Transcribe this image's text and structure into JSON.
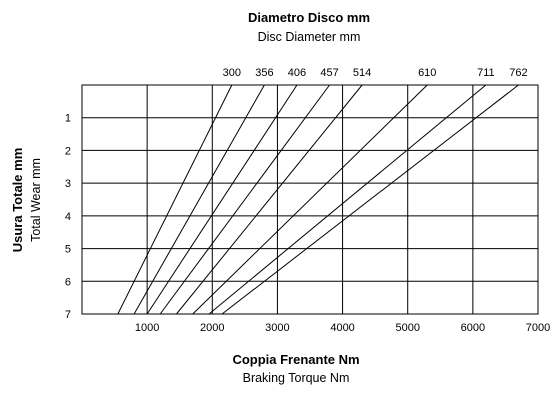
{
  "chart_data": {
    "type": "line",
    "title_top_primary": "Diametro Disco  mm",
    "title_top_secondary": "Disc Diameter  mm",
    "xlabel_primary": "Coppia Frenante  Nm",
    "xlabel_secondary": "Braking Torque  Nm",
    "ylabel_primary": "Usura Totale  mm",
    "ylabel_secondary": "Total Wear  mm",
    "xlim": [
      0,
      7000
    ],
    "ylim": [
      0,
      7
    ],
    "y_inverted": true,
    "grid": true,
    "x_ticks": [
      "1000",
      "2000",
      "3000",
      "4000",
      "5000",
      "6000",
      "7000"
    ],
    "y_ticks": [
      "1",
      "2",
      "3",
      "4",
      "5",
      "6",
      "7"
    ],
    "series": [
      {
        "name": "300",
        "points": [
          [
            2300,
            0
          ],
          [
            550,
            7
          ]
        ]
      },
      {
        "name": "356",
        "points": [
          [
            2800,
            0
          ],
          [
            800,
            7
          ]
        ]
      },
      {
        "name": "406",
        "points": [
          [
            3300,
            0
          ],
          [
            1000,
            7
          ]
        ]
      },
      {
        "name": "457",
        "points": [
          [
            3800,
            0
          ],
          [
            1200,
            7
          ]
        ]
      },
      {
        "name": "514",
        "points": [
          [
            4300,
            0
          ],
          [
            1450,
            7
          ]
        ]
      },
      {
        "name": "610",
        "points": [
          [
            5300,
            0
          ],
          [
            1700,
            7
          ]
        ]
      },
      {
        "name": "711",
        "points": [
          [
            6200,
            0
          ],
          [
            1950,
            7
          ]
        ]
      },
      {
        "name": "762",
        "points": [
          [
            6700,
            0
          ],
          [
            2150,
            7
          ]
        ]
      }
    ]
  }
}
